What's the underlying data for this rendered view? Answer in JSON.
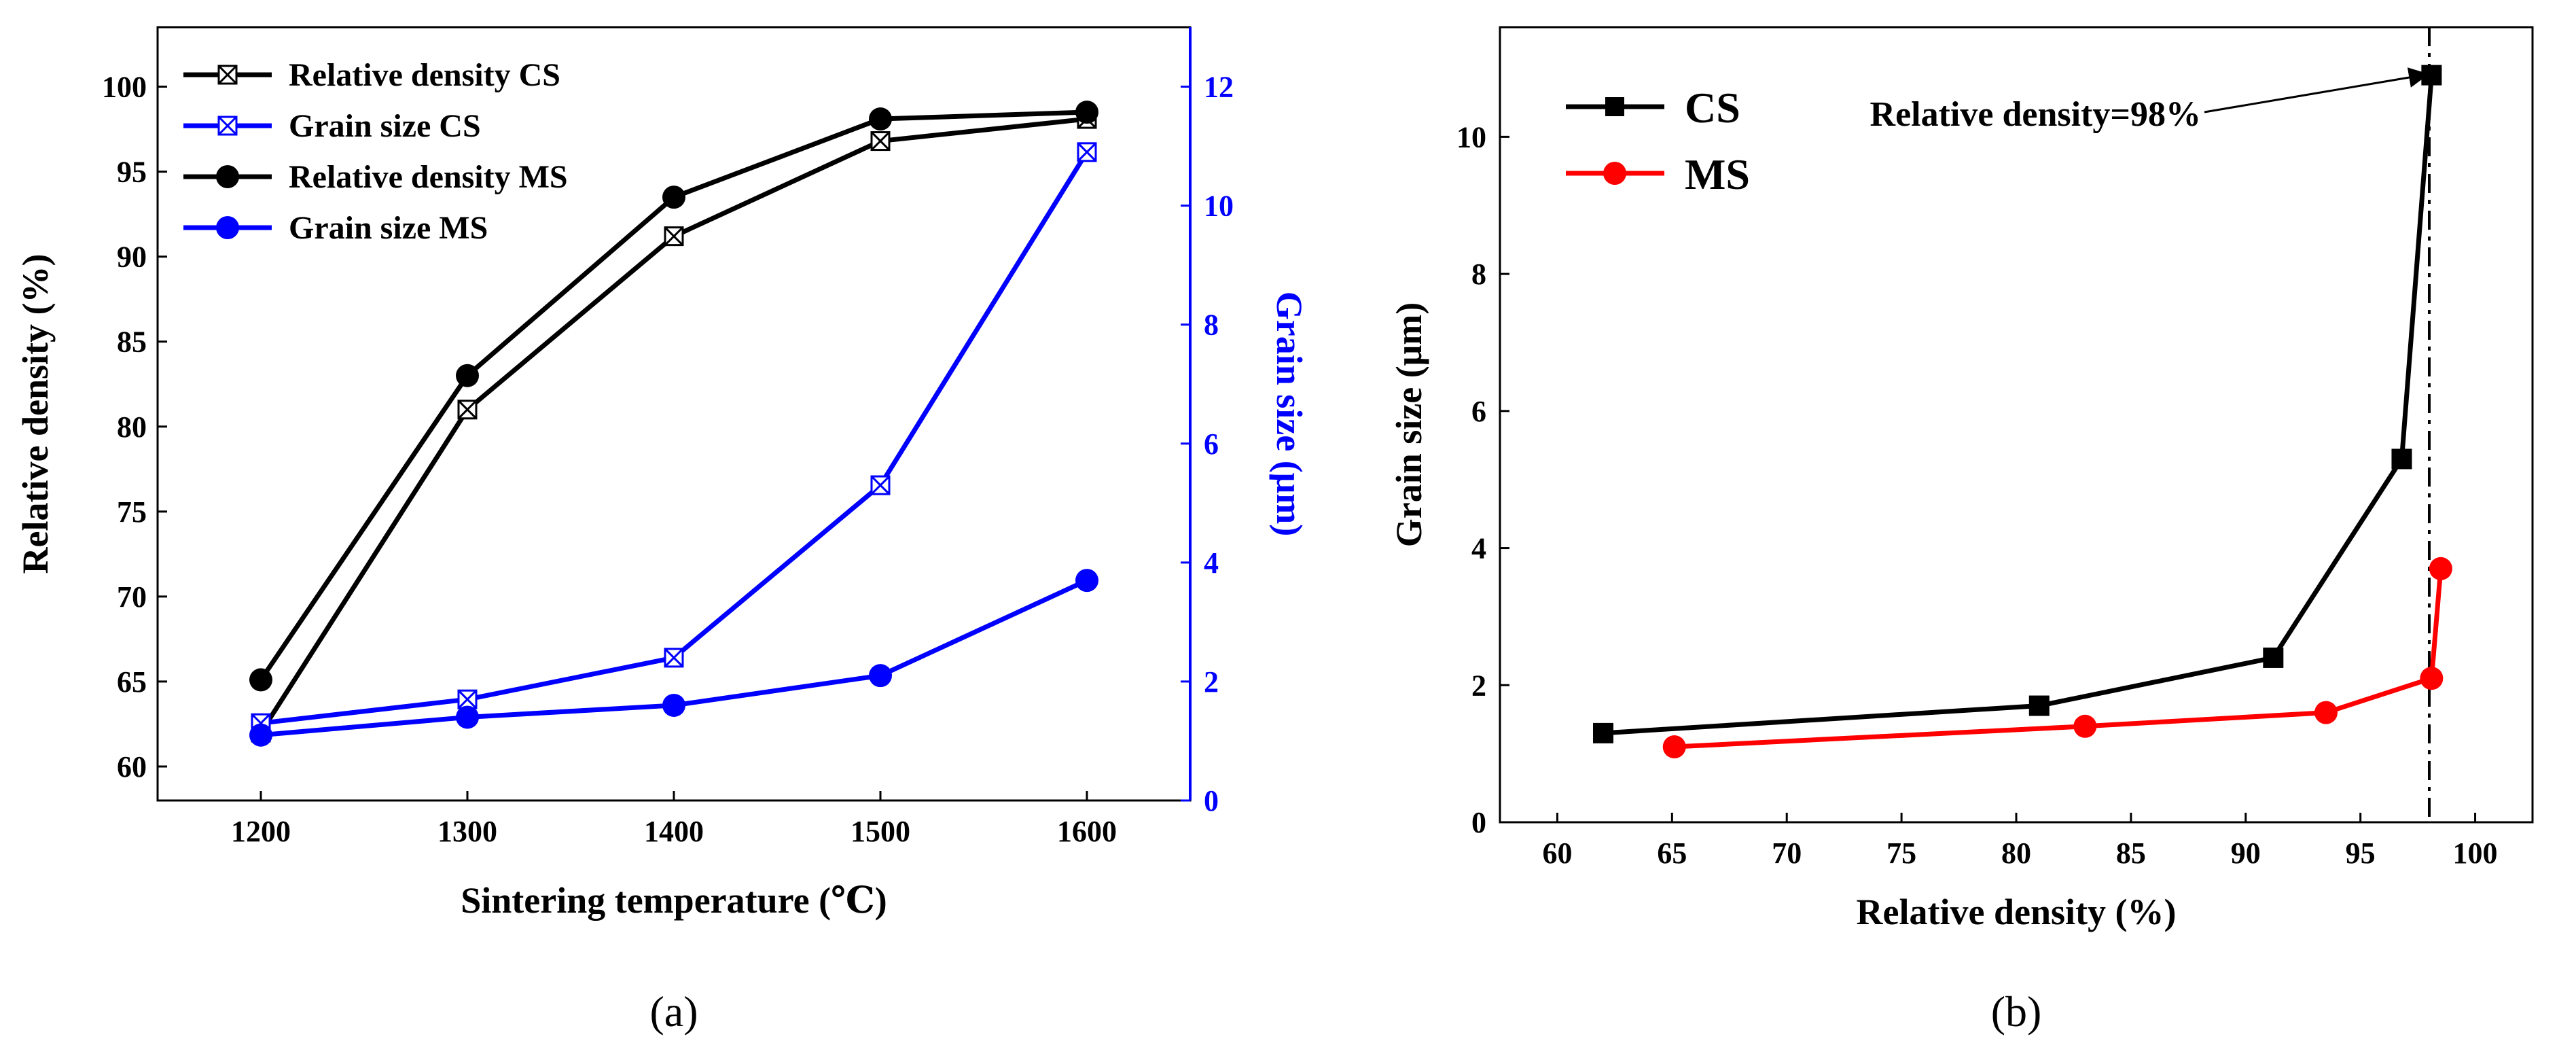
{
  "colors": {
    "cs_density": "#000000",
    "cs_grain": "#0000ff",
    "ms_density": "#000000",
    "ms_grain": "#0000ff",
    "cs_b": "#000000",
    "ms_b": "#ff0000",
    "right_axis": "#0000ff"
  },
  "chart_data": [
    {
      "type": "line",
      "panel_label": "(a)",
      "xlabel": "Sintering temperature (℃)",
      "ylabel": "Relative density (%)",
      "y2label": "Grain size (μm)",
      "xlim": [
        1150,
        1650
      ],
      "ylim": [
        58,
        103.5
      ],
      "y2lim": [
        0,
        13
      ],
      "xticks": [
        1200,
        1300,
        1400,
        1500,
        1600
      ],
      "yticks": [
        60,
        65,
        70,
        75,
        80,
        85,
        90,
        95,
        100
      ],
      "y2ticks": [
        0,
        2,
        4,
        6,
        8,
        10,
        12
      ],
      "grid": false,
      "legend_position": "top-left",
      "x": [
        1200,
        1300,
        1400,
        1500,
        1600
      ],
      "series": [
        {
          "name": "Relative density CS",
          "axis": "left",
          "marker": "boxed-x",
          "color": "#000000",
          "values": [
            62.0,
            81.0,
            91.2,
            96.8,
            98.1
          ]
        },
        {
          "name": "Grain size CS",
          "axis": "right",
          "marker": "boxed-x",
          "color": "#0000ff",
          "values": [
            1.3,
            1.7,
            2.4,
            5.3,
            10.9
          ]
        },
        {
          "name": "Relative density MS",
          "axis": "left",
          "marker": "circle",
          "color": "#000000",
          "values": [
            65.1,
            83.0,
            93.5,
            98.1,
            98.5
          ]
        },
        {
          "name": "Grain size MS",
          "axis": "right",
          "marker": "circle",
          "color": "#0000ff",
          "values": [
            1.1,
            1.4,
            1.6,
            2.1,
            3.7
          ]
        }
      ]
    },
    {
      "type": "line",
      "panel_label": "(b)",
      "xlabel": "Relative density (%)",
      "ylabel": "Grain size (μm)",
      "xlim": [
        57.5,
        102.5
      ],
      "ylim": [
        0,
        11.6
      ],
      "xticks": [
        60,
        65,
        70,
        75,
        80,
        85,
        90,
        95,
        100
      ],
      "yticks": [
        0,
        2,
        4,
        6,
        8,
        10
      ],
      "grid": false,
      "legend_position": "top-left",
      "annotation": {
        "text": "Relative density=98%",
        "x": 98
      },
      "series": [
        {
          "name": "CS",
          "marker": "square",
          "color": "#000000",
          "x": [
            62.0,
            81.0,
            91.2,
            96.8,
            98.1
          ],
          "y": [
            1.3,
            1.7,
            2.4,
            5.3,
            10.9
          ]
        },
        {
          "name": "MS",
          "marker": "circle",
          "color": "#ff0000",
          "x": [
            65.1,
            83.0,
            93.5,
            98.1,
            98.5
          ],
          "y": [
            1.1,
            1.4,
            1.6,
            2.1,
            3.7
          ]
        }
      ]
    }
  ]
}
